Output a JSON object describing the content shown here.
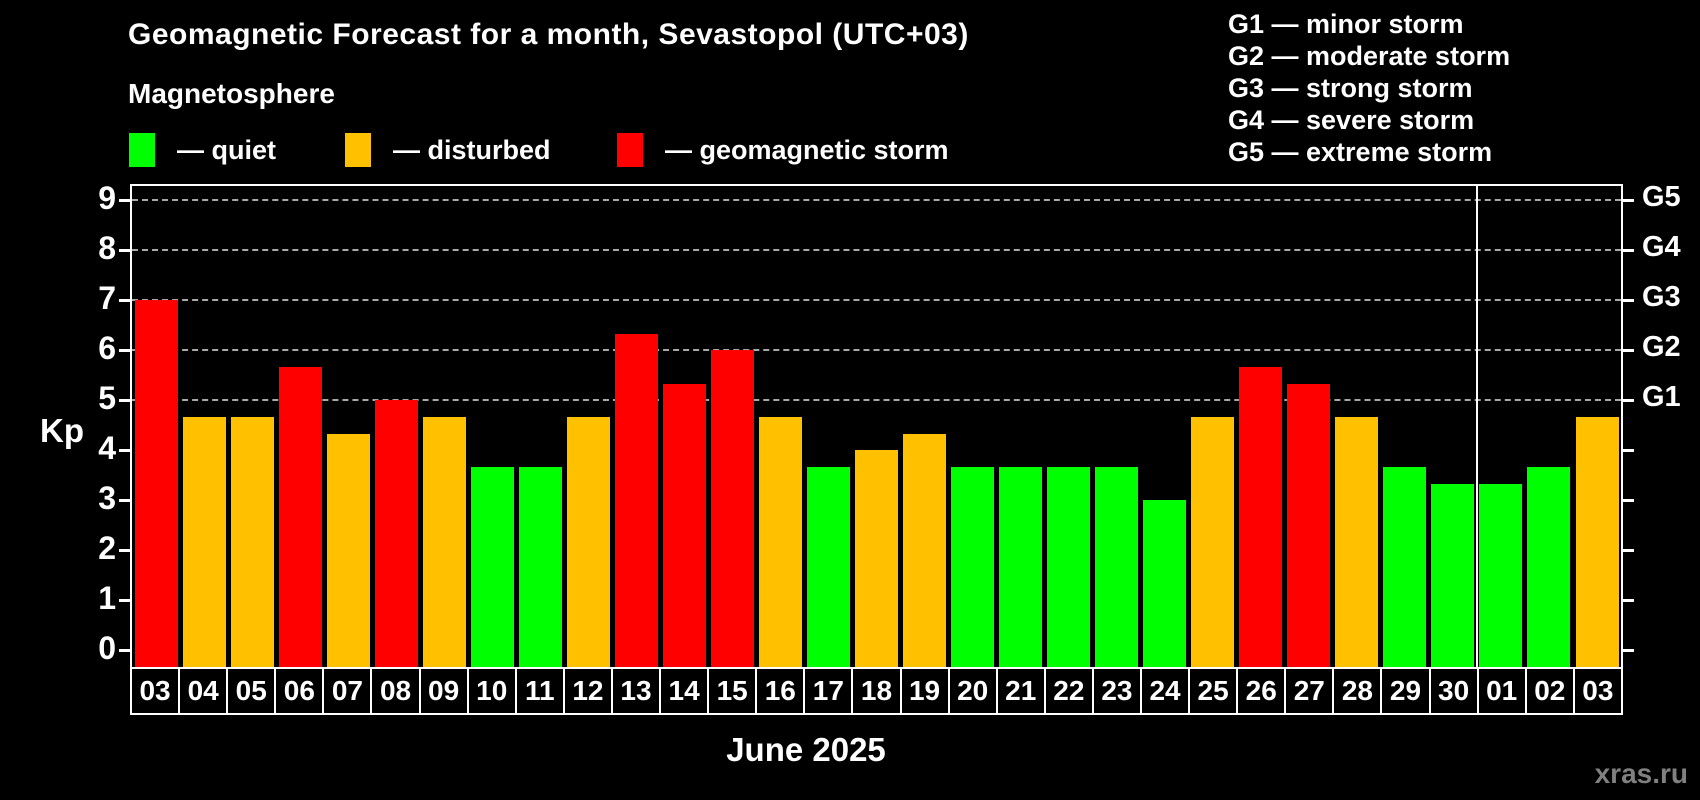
{
  "title": "Geomagnetic Forecast for a month, Sevastopol (UTC+03)",
  "subtitle": "Magnetosphere",
  "legend": {
    "items": [
      {
        "key": "quiet",
        "label": "— quiet"
      },
      {
        "key": "disturbed",
        "label": "— disturbed"
      },
      {
        "key": "storm",
        "label": "— geomagnetic storm"
      }
    ]
  },
  "g_legend": [
    "G1 — minor storm",
    "G2 — moderate storm",
    "G3 — strong storm",
    "G4 — severe storm",
    "G5 — extreme storm"
  ],
  "axis": {
    "y_label": "Kp",
    "x_label": "June 2025"
  },
  "watermark": "xras.ru",
  "colors": {
    "quiet": "#00ff00",
    "disturbed": "#ffc000",
    "storm": "#ff0000",
    "grid": "#a8a8a8",
    "axis": "#ffffff",
    "background": "#000000"
  },
  "chart_data": {
    "type": "bar",
    "title": "Geomagnetic Forecast for a month, Sevastopol (UTC+03)",
    "xlabel": "June 2025",
    "ylabel": "Kp",
    "ylim": [
      0,
      9
    ],
    "yticks": [
      0,
      1,
      2,
      3,
      4,
      5,
      6,
      7,
      8,
      9
    ],
    "gridlines": [
      5,
      6,
      7,
      8,
      9
    ],
    "grid": "dashed horizontal at storm levels only",
    "legend_position": "top-left",
    "categories": [
      "03",
      "04",
      "05",
      "06",
      "07",
      "08",
      "09",
      "10",
      "11",
      "12",
      "13",
      "14",
      "15",
      "16",
      "17",
      "18",
      "19",
      "20",
      "21",
      "22",
      "23",
      "24",
      "25",
      "26",
      "27",
      "28",
      "29",
      "30",
      "01",
      "02",
      "03"
    ],
    "values": [
      7.0,
      4.67,
      4.67,
      5.67,
      4.33,
      5.0,
      4.67,
      3.67,
      3.67,
      4.67,
      6.33,
      5.33,
      6.0,
      4.67,
      3.67,
      4.0,
      4.33,
      3.67,
      3.67,
      3.67,
      3.67,
      3.0,
      4.67,
      5.67,
      5.33,
      4.67,
      3.67,
      3.33,
      3.33,
      3.67,
      4.67
    ],
    "statuses": [
      "storm",
      "disturbed",
      "disturbed",
      "storm",
      "disturbed",
      "storm",
      "disturbed",
      "quiet",
      "quiet",
      "disturbed",
      "storm",
      "storm",
      "storm",
      "disturbed",
      "quiet",
      "disturbed",
      "disturbed",
      "quiet",
      "quiet",
      "quiet",
      "quiet",
      "quiet",
      "disturbed",
      "storm",
      "storm",
      "disturbed",
      "quiet",
      "quiet",
      "quiet",
      "quiet",
      "disturbed"
    ],
    "right_axis": [
      {
        "label": "G1",
        "value": 5
      },
      {
        "label": "G2",
        "value": 6
      },
      {
        "label": "G3",
        "value": 7
      },
      {
        "label": "G4",
        "value": 8
      },
      {
        "label": "G5",
        "value": 9
      }
    ],
    "month_separator_after_category_index": 27
  }
}
